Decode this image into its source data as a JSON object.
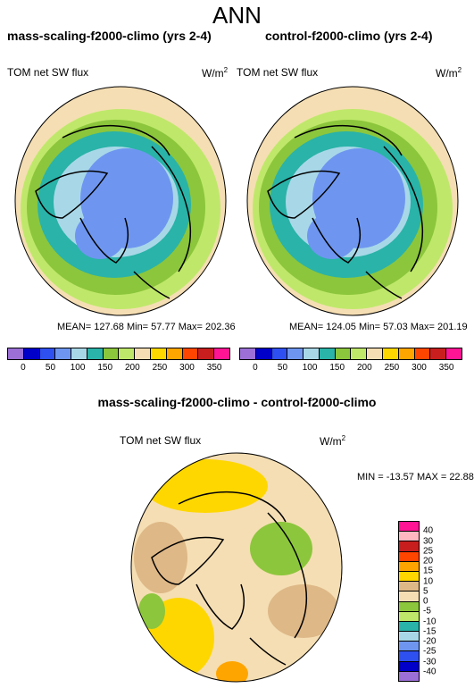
{
  "header": {
    "title": "ANN"
  },
  "panels": [
    {
      "title": "mass-scaling-f2000-climo (yrs 2-4)",
      "field_label": "TOM net SW flux",
      "units": "W/m",
      "units_sup": "2",
      "stats": "MEAN= 127.68  Min=  57.77  Max= 202.36"
    },
    {
      "title": "control-f2000-climo (yrs 2-4)",
      "field_label": "TOM net SW flux",
      "units": "W/m",
      "units_sup": "2",
      "stats": "MEAN= 124.05  Min=  57.03  Max= 201.19"
    }
  ],
  "diff_panel": {
    "title": "mass-scaling-f2000-climo - control-f2000-climo",
    "field_label": "TOM net SW flux",
    "units": "W/m",
    "units_sup": "2",
    "minmax": "MIN = -13.57 MAX =  22.88"
  },
  "colorbar_abs": {
    "colors": [
      "#9b6fd6",
      "#0000c8",
      "#2f50f0",
      "#6e96f0",
      "#a8d8e8",
      "#2ab3a8",
      "#8cc63c",
      "#bfe86a",
      "#f5deb3",
      "#ffd700",
      "#ffa500",
      "#ff4500",
      "#c81e1e",
      "#ff1493"
    ],
    "tick_labels": [
      "0",
      "50",
      "100",
      "150",
      "200",
      "250",
      "300",
      "350"
    ],
    "tick_index_labels": [
      "0",
      "50",
      "100",
      "150",
      "200",
      "250",
      "300",
      "350"
    ]
  },
  "colorbar_diff": {
    "colors": [
      "#ff1493",
      "#ffb6c1",
      "#c81e1e",
      "#ff4500",
      "#ffa500",
      "#ffd700",
      "#deb887",
      "#f5deb3",
      "#8cc63c",
      "#bfe86a",
      "#2ab3a8",
      "#a8d8e8",
      "#6e96f0",
      "#2f50f0",
      "#0000c8",
      "#9b6fd6"
    ],
    "tick_labels": [
      "40",
      "30",
      "25",
      "20",
      "15",
      "10",
      "5",
      "0",
      "-5",
      "-10",
      "-15",
      "-20",
      "-25",
      "-30",
      "-40"
    ]
  }
}
